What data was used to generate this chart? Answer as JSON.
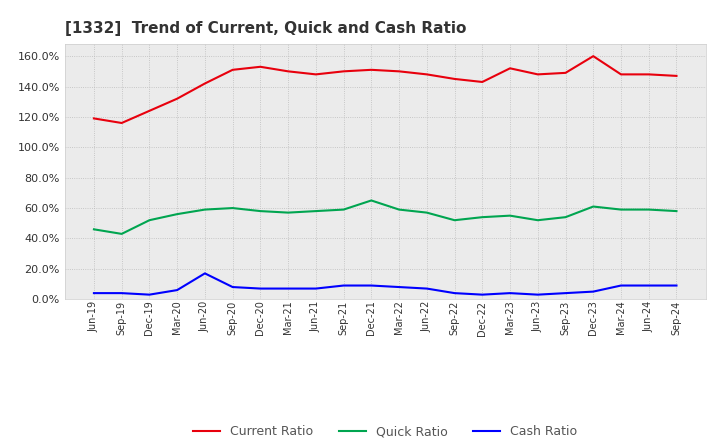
{
  "title": "[1332]  Trend of Current, Quick and Cash Ratio",
  "x_labels": [
    "Jun-19",
    "Sep-19",
    "Dec-19",
    "Mar-20",
    "Jun-20",
    "Sep-20",
    "Dec-20",
    "Mar-21",
    "Jun-21",
    "Sep-21",
    "Dec-21",
    "Mar-22",
    "Jun-22",
    "Sep-22",
    "Dec-22",
    "Mar-23",
    "Jun-23",
    "Sep-23",
    "Dec-23",
    "Mar-24",
    "Jun-24",
    "Sep-24"
  ],
  "current_ratio": [
    119,
    116,
    124,
    132,
    142,
    151,
    153,
    150,
    148,
    150,
    151,
    150,
    148,
    145,
    143,
    152,
    148,
    149,
    160,
    148,
    148,
    147
  ],
  "quick_ratio": [
    46,
    43,
    52,
    56,
    59,
    60,
    58,
    57,
    58,
    59,
    65,
    59,
    57,
    52,
    54,
    55,
    52,
    54,
    61,
    59,
    59,
    58
  ],
  "cash_ratio": [
    4,
    4,
    3,
    6,
    17,
    8,
    7,
    7,
    7,
    9,
    9,
    8,
    7,
    4,
    3,
    4,
    3,
    4,
    5,
    9,
    9,
    9
  ],
  "current_color": "#e8000d",
  "quick_color": "#00a550",
  "cash_color": "#0000ff",
  "bg_color": "#ffffff",
  "plot_bg_color": "#ebebeb",
  "grid_color": "#bbbbbb",
  "legend_text_color": "#555555",
  "title_color": "#333333",
  "ylim_min": 0,
  "ylim_max": 168,
  "ytick_values": [
    0,
    20,
    40,
    60,
    80,
    100,
    120,
    140,
    160
  ]
}
